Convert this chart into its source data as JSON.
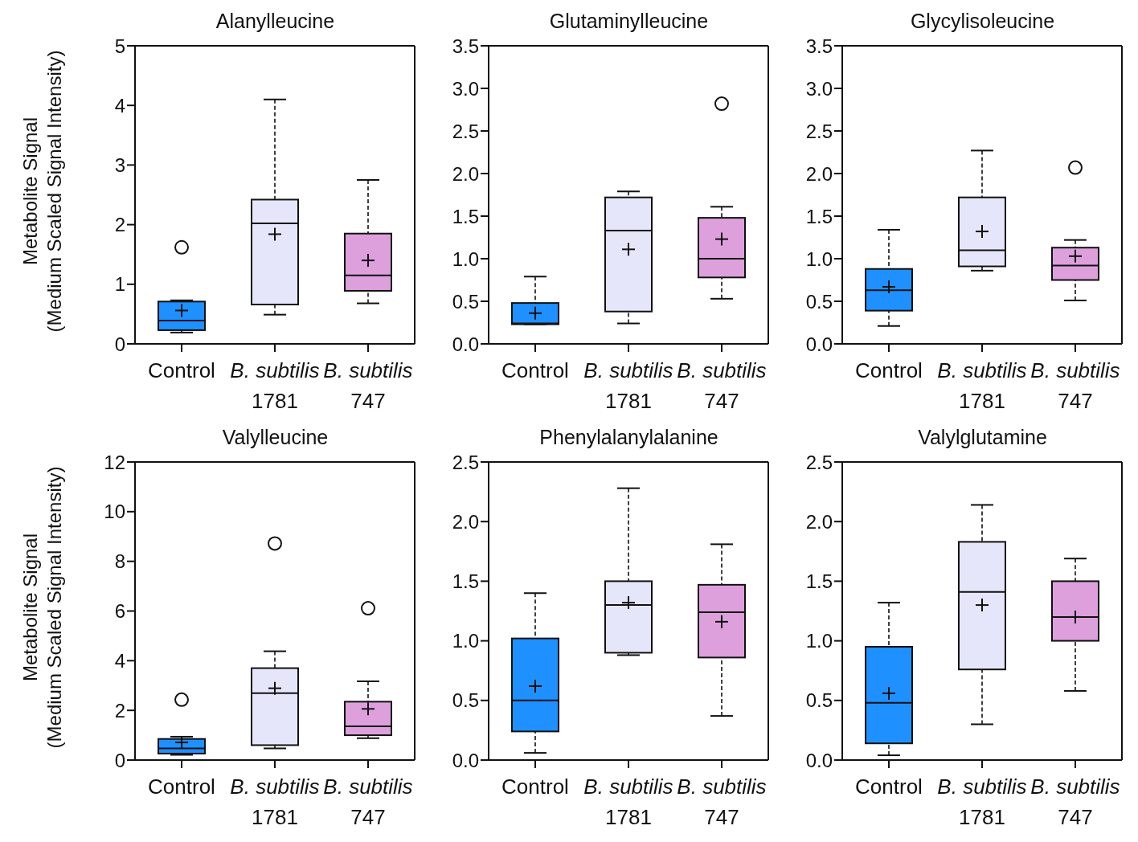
{
  "chart_data": [
    {
      "type": "box",
      "title": "Alanylleucine",
      "ylabel": "Metabolite Signal\n(Medium Scaled Signal Intensity)",
      "categories": [
        "Control",
        "B. subtilis 1781",
        "B. subtilis 747"
      ],
      "colors": [
        "#1e90ff",
        "#e6e6fa",
        "#dda0dd"
      ],
      "ylim": [
        0,
        5
      ],
      "yticks": [
        0,
        1,
        2,
        3,
        4,
        5
      ],
      "boxes": [
        {
          "low": 0.19,
          "q1": 0.23,
          "median": 0.39,
          "q3": 0.71,
          "high": 0.73,
          "mean": 0.56,
          "outliers": [
            1.62
          ]
        },
        {
          "low": 0.49,
          "q1": 0.66,
          "median": 2.02,
          "q3": 2.42,
          "high": 4.1,
          "mean": 1.84
        },
        {
          "low": 0.68,
          "q1": 0.89,
          "median": 1.15,
          "q3": 1.85,
          "high": 2.75,
          "mean": 1.4
        }
      ]
    },
    {
      "type": "box",
      "title": "Glutaminylleucine",
      "categories": [
        "Control",
        "B. subtilis 1781",
        "B. subtilis 747"
      ],
      "colors": [
        "#1e90ff",
        "#e6e6fa",
        "#dda0dd"
      ],
      "ylim": [
        0,
        3.5
      ],
      "yticks": [
        {
          "value": 0,
          "label": "0.0"
        },
        0.5,
        {
          "value": 1,
          "label": "1.0"
        },
        1.5,
        {
          "value": 2,
          "label": "2.0"
        },
        2.5,
        {
          "value": 3,
          "label": "3.0"
        },
        3.5
      ],
      "boxes": [
        {
          "low": 0.23,
          "q1": 0.23,
          "median": 0.24,
          "q3": 0.48,
          "high": 0.79,
          "mean": 0.36
        },
        {
          "low": 0.24,
          "q1": 0.38,
          "median": 1.33,
          "q3": 1.72,
          "high": 1.79,
          "mean": 1.11
        },
        {
          "low": 0.53,
          "q1": 0.78,
          "median": 1.0,
          "q3": 1.48,
          "high": 1.61,
          "mean": 1.23,
          "outliers": [
            2.82
          ]
        }
      ]
    },
    {
      "type": "box",
      "title": "Glycylisoleucine",
      "categories": [
        "Control",
        "B. subtilis 1781",
        "B. subtilis 747"
      ],
      "colors": [
        "#1e90ff",
        "#e6e6fa",
        "#dda0dd"
      ],
      "ylim": [
        0,
        3.5
      ],
      "yticks": [
        {
          "value": 0,
          "label": "0.0"
        },
        0.5,
        {
          "value": 1,
          "label": "1.0"
        },
        1.5,
        {
          "value": 2,
          "label": "2.0"
        },
        2.5,
        {
          "value": 3,
          "label": "3.0"
        },
        3.5
      ],
      "boxes": [
        {
          "low": 0.21,
          "q1": 0.39,
          "median": 0.63,
          "q3": 0.88,
          "high": 1.34,
          "mean": 0.67
        },
        {
          "low": 0.86,
          "q1": 0.91,
          "median": 1.1,
          "q3": 1.72,
          "high": 2.27,
          "mean": 1.32
        },
        {
          "low": 0.51,
          "q1": 0.75,
          "median": 0.92,
          "q3": 1.13,
          "high": 1.22,
          "mean": 1.03,
          "outliers": [
            2.07
          ]
        }
      ]
    },
    {
      "type": "box",
      "title": "Valylleucine",
      "ylabel": "Metabolite Signal\n(Medium Scaled Signal Intensity)",
      "categories": [
        "Control",
        "B. subtilis 1781",
        "B. subtilis 747"
      ],
      "colors": [
        "#1e90ff",
        "#e6e6fa",
        "#dda0dd"
      ],
      "ylim": [
        0,
        12
      ],
      "yticks": [
        0,
        2,
        4,
        6,
        8,
        10,
        12
      ],
      "boxes": [
        {
          "low": 0.21,
          "q1": 0.26,
          "median": 0.47,
          "q3": 0.85,
          "high": 0.94,
          "mean": 0.71,
          "outliers": [
            2.43
          ]
        },
        {
          "low": 0.47,
          "q1": 0.6,
          "median": 2.69,
          "q3": 3.7,
          "high": 4.38,
          "mean": 2.89,
          "outliers": [
            8.72
          ]
        },
        {
          "low": 0.88,
          "q1": 1.0,
          "median": 1.36,
          "q3": 2.35,
          "high": 3.17,
          "mean": 2.06,
          "outliers": [
            6.11
          ]
        }
      ]
    },
    {
      "type": "box",
      "title": "Phenylalanylalanine",
      "categories": [
        "Control",
        "B. subtilis 1781",
        "B. subtilis 747"
      ],
      "colors": [
        "#1e90ff",
        "#e6e6fa",
        "#dda0dd"
      ],
      "ylim": [
        0,
        2.5
      ],
      "yticks": [
        {
          "value": 0,
          "label": "0.0"
        },
        0.5,
        {
          "value": 1,
          "label": "1.0"
        },
        1.5,
        {
          "value": 2,
          "label": "2.0"
        },
        2.5
      ],
      "boxes": [
        {
          "low": 0.06,
          "q1": 0.24,
          "median": 0.5,
          "q3": 1.02,
          "high": 1.4,
          "mean": 0.62
        },
        {
          "low": 0.88,
          "q1": 0.9,
          "median": 1.3,
          "q3": 1.5,
          "high": 2.28,
          "mean": 1.32
        },
        {
          "low": 0.37,
          "q1": 0.86,
          "median": 1.24,
          "q3": 1.47,
          "high": 1.81,
          "mean": 1.16
        }
      ]
    },
    {
      "type": "box",
      "title": "Valylglutamine",
      "categories": [
        "Control",
        "B. subtilis 1781",
        "B. subtilis 747"
      ],
      "colors": [
        "#1e90ff",
        "#e6e6fa",
        "#dda0dd"
      ],
      "ylim": [
        0,
        2.5
      ],
      "yticks": [
        {
          "value": 0,
          "label": "0.0"
        },
        0.5,
        {
          "value": 1,
          "label": "1.0"
        },
        1.5,
        {
          "value": 2,
          "label": "2.0"
        },
        2.5
      ],
      "boxes": [
        {
          "low": 0.04,
          "q1": 0.14,
          "median": 0.48,
          "q3": 0.95,
          "high": 1.32,
          "mean": 0.56
        },
        {
          "low": 0.3,
          "q1": 0.76,
          "median": 1.41,
          "q3": 1.83,
          "high": 2.14,
          "mean": 1.3
        },
        {
          "low": 0.58,
          "q1": 1.0,
          "median": 1.2,
          "q3": 1.5,
          "high": 1.69,
          "mean": 1.2
        }
      ]
    }
  ]
}
